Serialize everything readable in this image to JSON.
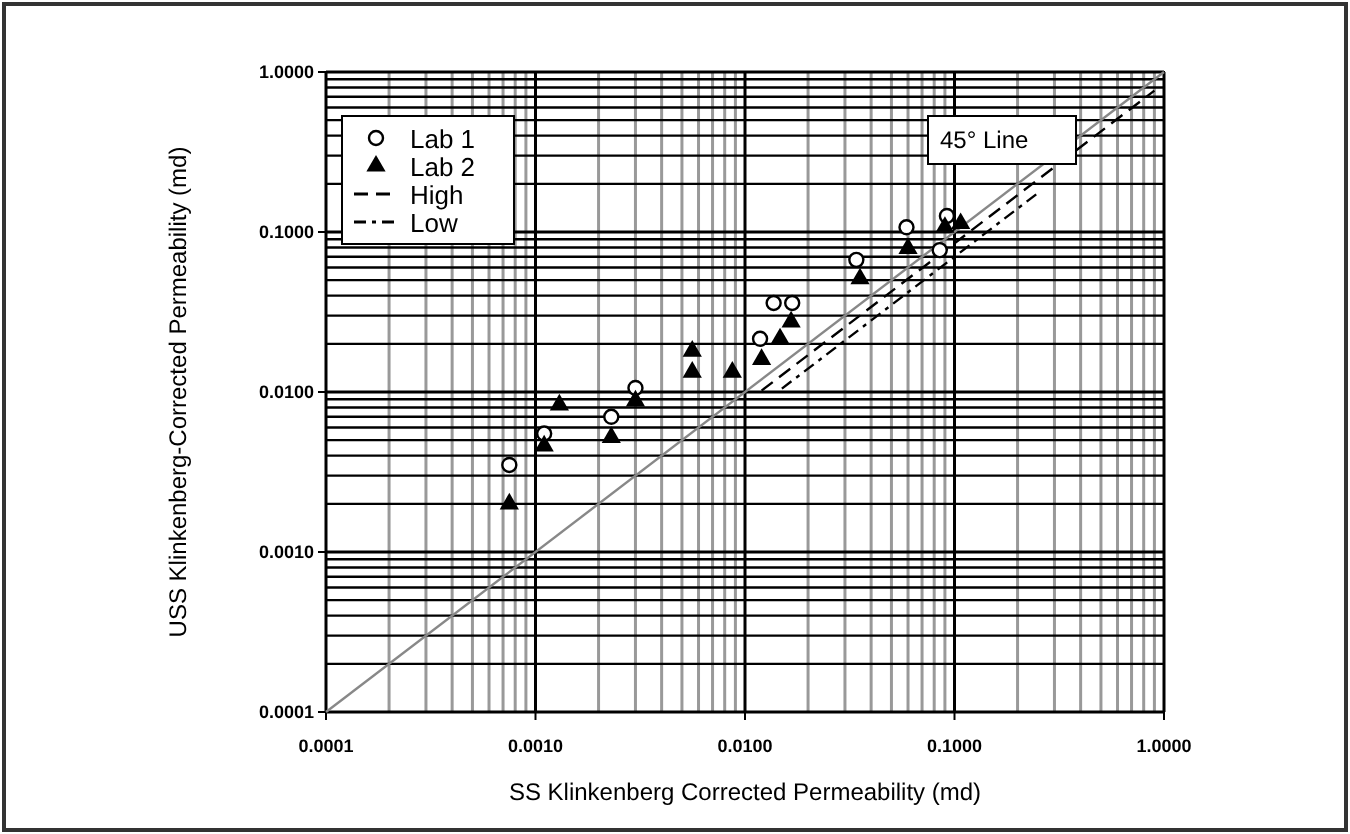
{
  "chart_data": {
    "type": "scatter",
    "xlabel": "SS Klinkenberg  Corrected Permeability (md)",
    "ylabel": "USS Klinkenberg-Corrected Permeability (md)",
    "log": "xy",
    "grid": true,
    "legend": "top left",
    "xlim": [
      0.0001,
      1
    ],
    "ylim": [
      0.0001,
      1
    ],
    "xticks": [
      {
        "value": 0.0001,
        "label": "0.0001"
      },
      {
        "value": 0.001,
        "label": "0.0010"
      },
      {
        "value": 0.01,
        "label": "0.0100"
      },
      {
        "value": 0.1,
        "label": "0.1000"
      },
      {
        "value": 1,
        "label": "1.0000"
      }
    ],
    "yticks": [
      {
        "value": 0.0001,
        "label": "0.0001"
      },
      {
        "value": 0.001,
        "label": "0.0010"
      },
      {
        "value": 0.01,
        "label": "0.0100"
      },
      {
        "value": 0.1,
        "label": "0.1000"
      },
      {
        "value": 1,
        "label": "1.0000"
      }
    ],
    "series": [
      {
        "name": "Lab 1",
        "marker": "circle",
        "color": "#000000",
        "x": [
          0.00075,
          0.0011,
          0.0023,
          0.003,
          0.0118,
          0.0137,
          0.0168,
          0.034,
          0.059,
          0.085,
          0.092
        ],
        "values": [
          0.0035,
          0.0055,
          0.007,
          0.0106,
          0.0215,
          0.036,
          0.036,
          0.067,
          0.107,
          0.077,
          0.126
        ]
      },
      {
        "name": "Lab 2",
        "marker": "triangle",
        "color": "#000000",
        "x": [
          0.00075,
          0.0011,
          0.0013,
          0.0023,
          0.003,
          0.0056,
          0.0056,
          0.0087,
          0.012,
          0.0147,
          0.0166,
          0.0354,
          0.06,
          0.09,
          0.107
        ],
        "values": [
          0.002,
          0.0046,
          0.0083,
          0.0052,
          0.0088,
          0.0133,
          0.018,
          0.0133,
          0.016,
          0.0215,
          0.0274,
          0.051,
          0.079,
          0.107,
          0.113
        ]
      },
      {
        "name": "High",
        "type": "line",
        "line_style": "dashed",
        "color": "#000000",
        "x": [
          0.012,
          0.9
        ],
        "values": [
          0.0102,
          0.765
        ]
      },
      {
        "name": "Low",
        "type": "line",
        "line_style": "dotted",
        "color": "#000000",
        "x": [
          0.015,
          0.25
        ],
        "values": [
          0.0105,
          0.175
        ]
      },
      {
        "name": "45° Line",
        "type": "line",
        "line_style": "solid",
        "color": "#888888",
        "x": [
          0.0001,
          1
        ],
        "values": [
          0.0001,
          1
        ]
      }
    ]
  }
}
